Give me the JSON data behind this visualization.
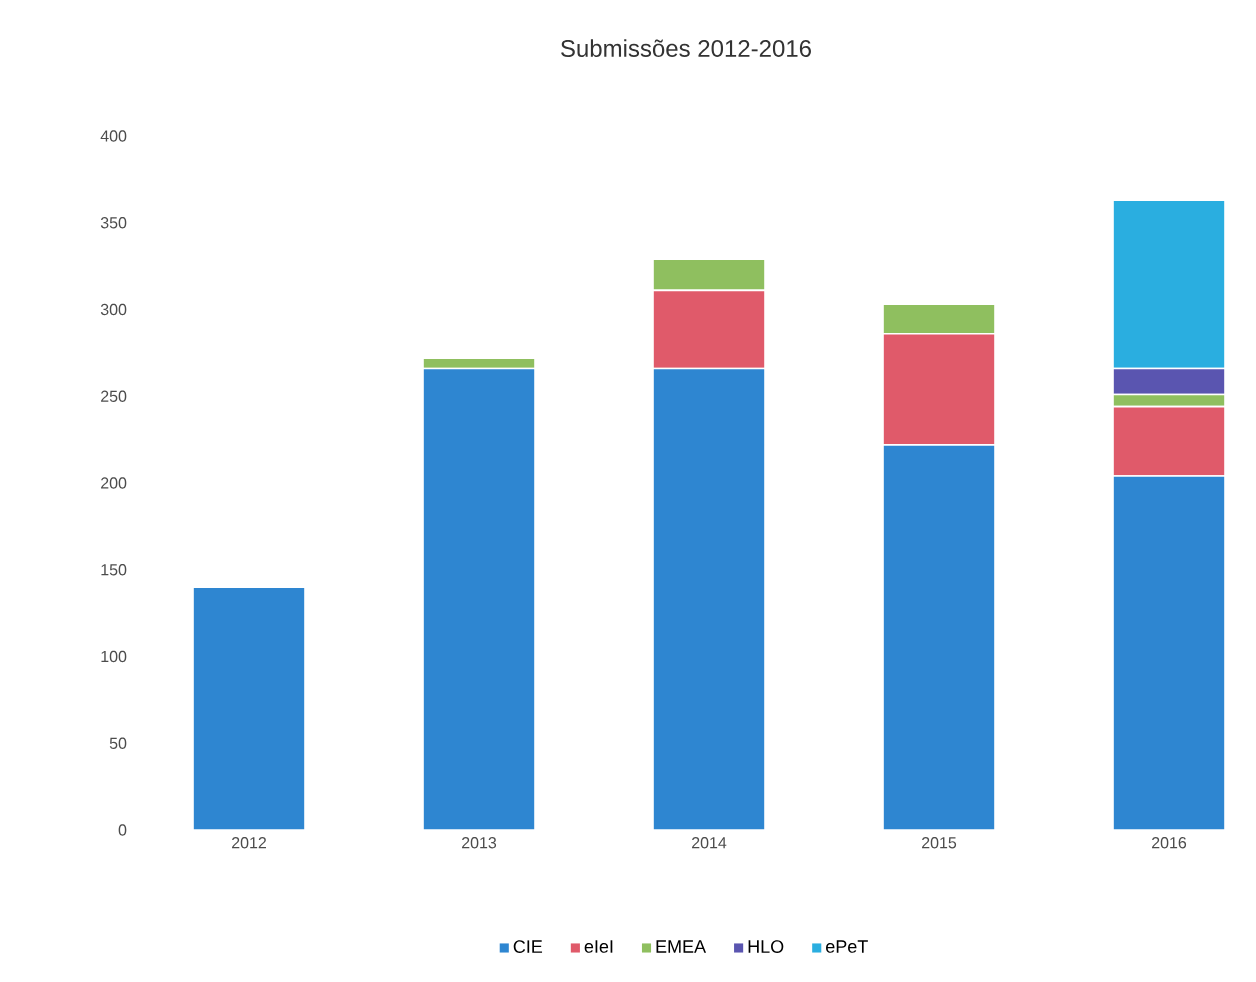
{
  "chart_data": {
    "type": "bar",
    "title": "Submissões 2012-2016",
    "stacked": true,
    "categories": [
      "2012",
      "2013",
      "2014",
      "2015",
      "2016"
    ],
    "series": [
      {
        "name": "CIE",
        "color": "#2e86d1",
        "values": [
          140,
          266,
          266,
          222,
          204
        ]
      },
      {
        "name": "eIeI",
        "color": "#e05a6a",
        "values": [
          0,
          0,
          45,
          64,
          40
        ]
      },
      {
        "name": "EMEA",
        "color": "#8fbf5f",
        "values": [
          0,
          6,
          18,
          17,
          7
        ]
      },
      {
        "name": "HLO",
        "color": "#5a55b0",
        "values": [
          0,
          0,
          0,
          0,
          15
        ]
      },
      {
        "name": "ePeT",
        "color": "#2aaee0",
        "values": [
          0,
          0,
          0,
          0,
          97
        ]
      }
    ],
    "ylim": [
      0,
      400
    ],
    "yticks": [
      0,
      50,
      100,
      150,
      200,
      250,
      300,
      350,
      400
    ],
    "grid": false,
    "legend": "bottom"
  }
}
